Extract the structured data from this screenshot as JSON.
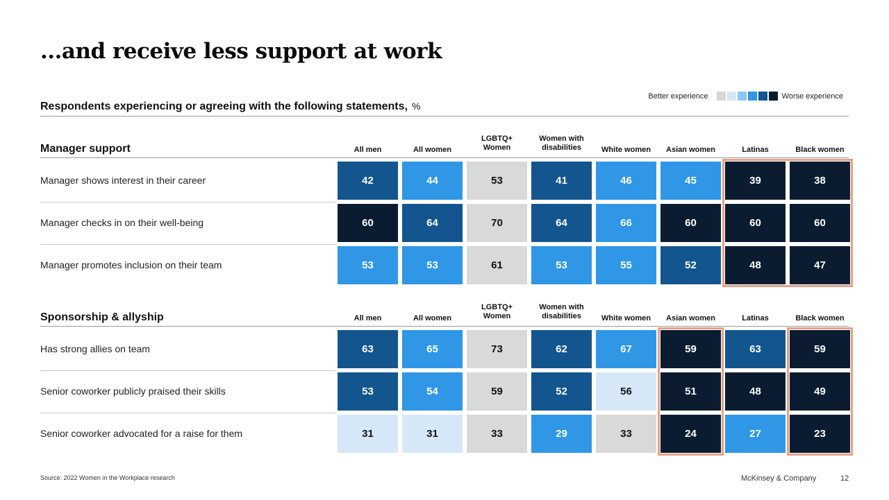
{
  "title": "...and receive less support at work",
  "subtitle": "Respondents experiencing or agreeing with the following statements,",
  "unit": "%",
  "legend": {
    "left_label": "Better experience",
    "right_label": "Worse experience",
    "scale_colors": [
      "#d9d9d9",
      "#d6e8f8",
      "#8fc6ef",
      "#2f97e6",
      "#13558f",
      "#0b1c30"
    ]
  },
  "columns": [
    "All men",
    "All women",
    "LGBTQ+ Women",
    "Women with disabilities",
    "White women",
    "Asian women",
    "Latinas",
    "Black women"
  ],
  "level_colors": {
    "gray": "#d9d9d9",
    "pale": "#d6e8f8",
    "bright": "#2f97e6",
    "medium": "#13558f",
    "dark": "#0b1c30"
  },
  "highlight_color": "#e3a18a",
  "chart_data": {
    "type": "table",
    "sections": [
      {
        "title": "Manager support",
        "rows": [
          {
            "label": "Manager shows interest in their career",
            "values": [
              42,
              44,
              53,
              41,
              46,
              45,
              39,
              38
            ],
            "levels": [
              "medium",
              "bright",
              "gray",
              "medium",
              "bright",
              "bright",
              "dark",
              "dark"
            ]
          },
          {
            "label": "Manager checks in on their well-being",
            "values": [
              60,
              64,
              70,
              64,
              66,
              60,
              60,
              60
            ],
            "levels": [
              "dark",
              "medium",
              "gray",
              "medium",
              "bright",
              "dark",
              "dark",
              "dark"
            ]
          },
          {
            "label": "Manager promotes inclusion on their team",
            "values": [
              53,
              53,
              61,
              53,
              55,
              52,
              48,
              47
            ],
            "levels": [
              "bright",
              "bright",
              "gray",
              "bright",
              "bright",
              "medium",
              "dark",
              "dark"
            ]
          }
        ],
        "highlighted_columns": [
          "Latinas",
          "Black women"
        ]
      },
      {
        "title": "Sponsorship & allyship",
        "rows": [
          {
            "label": "Has strong allies on team",
            "values": [
              63,
              65,
              73,
              62,
              67,
              59,
              63,
              59
            ],
            "levels": [
              "medium",
              "bright",
              "gray",
              "medium",
              "bright",
              "dark",
              "medium",
              "dark"
            ]
          },
          {
            "label": "Senior coworker publicly praised their skills",
            "values": [
              53,
              54,
              59,
              52,
              56,
              51,
              48,
              49
            ],
            "levels": [
              "medium",
              "bright",
              "gray",
              "medium",
              "pale",
              "dark",
              "dark",
              "dark"
            ]
          },
          {
            "label": "Senior coworker advocated for a raise for them",
            "values": [
              31,
              31,
              33,
              29,
              33,
              24,
              27,
              23
            ],
            "levels": [
              "pale",
              "pale",
              "gray",
              "bright",
              "gray",
              "dark",
              "bright",
              "dark"
            ]
          }
        ],
        "highlighted_columns": [
          "Asian women",
          "Black women"
        ]
      }
    ]
  },
  "footer": {
    "source": "Source: 2022 Women in the Workplace research",
    "brand": "McKinsey & Company",
    "page": "12"
  }
}
